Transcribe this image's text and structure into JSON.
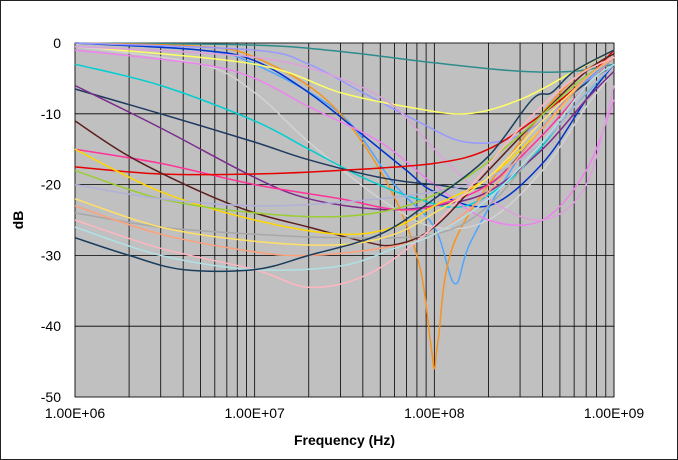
{
  "chart_data": {
    "type": "line",
    "title": "",
    "xlabel": "Frequency (Hz)",
    "ylabel": "dB",
    "x_scale": "log",
    "xlim": [
      1000000,
      1000000000
    ],
    "ylim": [
      -50,
      0
    ],
    "x_ticks": [
      1000000,
      10000000,
      100000000,
      1000000000
    ],
    "x_tick_labels": [
      "1.00E+06",
      "1.00E+07",
      "1.00E+08",
      "1.00E+09"
    ],
    "y_ticks": [
      0,
      -10,
      -20,
      -30,
      -40,
      -50
    ],
    "y_tick_labels": [
      "0",
      "-10",
      "-20",
      "-30",
      "-40",
      "-50"
    ],
    "grid": "on",
    "legend": "none",
    "plot_background": "#c0c0c0",
    "series": [
      {
        "color": "#2e8b8b",
        "points": [
          [
            1000000,
            0
          ],
          [
            10000000,
            -0.3
          ],
          [
            30000000,
            -1.2
          ],
          [
            100000000,
            -2.8
          ],
          [
            300000000,
            -4
          ],
          [
            600000000,
            -4
          ],
          [
            1000000000,
            -3
          ]
        ]
      },
      {
        "color": "#4da6ff",
        "points": [
          [
            1000000,
            0
          ],
          [
            5000000,
            -1
          ],
          [
            10000000,
            -3
          ],
          [
            30000000,
            -10
          ],
          [
            60000000,
            -20
          ],
          [
            100000000,
            -26
          ],
          [
            130000000,
            -34
          ],
          [
            160000000,
            -28
          ],
          [
            300000000,
            -16
          ],
          [
            600000000,
            -7
          ],
          [
            1000000000,
            -2
          ]
        ]
      },
      {
        "color": "#f7941d",
        "points": [
          [
            1000000,
            0
          ],
          [
            5000000,
            -0.5
          ],
          [
            10000000,
            -2
          ],
          [
            25000000,
            -8
          ],
          [
            50000000,
            -18
          ],
          [
            80000000,
            -30
          ],
          [
            95000000,
            -42
          ],
          [
            100000000,
            -46
          ],
          [
            105000000,
            -42
          ],
          [
            130000000,
            -28
          ],
          [
            300000000,
            -14
          ],
          [
            600000000,
            -5
          ],
          [
            1000000000,
            -2
          ]
        ]
      },
      {
        "color": "#0033cc",
        "points": [
          [
            1000000,
            0
          ],
          [
            5000000,
            -1
          ],
          [
            10000000,
            -2.5
          ],
          [
            20000000,
            -7
          ],
          [
            40000000,
            -13
          ],
          [
            70000000,
            -18
          ],
          [
            100000000,
            -21
          ],
          [
            200000000,
            -23
          ],
          [
            400000000,
            -17
          ],
          [
            700000000,
            -8
          ],
          [
            1000000000,
            -3
          ]
        ]
      },
      {
        "color": "#9999ff",
        "points": [
          [
            1000000,
            0
          ],
          [
            10000000,
            -1
          ],
          [
            20000000,
            -3
          ],
          [
            40000000,
            -7
          ],
          [
            80000000,
            -11
          ],
          [
            150000000,
            -14
          ],
          [
            300000000,
            -13
          ],
          [
            600000000,
            -7
          ],
          [
            1000000000,
            -2
          ]
        ]
      },
      {
        "color": "#ffff66",
        "points": [
          [
            1000000,
            -0.5
          ],
          [
            10000000,
            -3
          ],
          [
            30000000,
            -7
          ],
          [
            70000000,
            -9
          ],
          [
            150000000,
            -10
          ],
          [
            300000000,
            -8
          ],
          [
            600000000,
            -4
          ],
          [
            1000000000,
            -1
          ]
        ]
      },
      {
        "color": "#d3d3d3",
        "points": [
          [
            1000000,
            -0.5
          ],
          [
            5000000,
            -3
          ],
          [
            10000000,
            -7
          ],
          [
            20000000,
            -14
          ],
          [
            50000000,
            -22
          ],
          [
            100000000,
            -26
          ],
          [
            200000000,
            -25
          ],
          [
            400000000,
            -18
          ],
          [
            700000000,
            -9
          ],
          [
            1000000000,
            -4
          ]
        ]
      },
      {
        "color": "#00ced1",
        "points": [
          [
            1000000,
            -3
          ],
          [
            3000000,
            -6
          ],
          [
            10000000,
            -11
          ],
          [
            20000000,
            -15
          ],
          [
            40000000,
            -19
          ],
          [
            80000000,
            -22
          ],
          [
            150000000,
            -23
          ],
          [
            300000000,
            -18
          ],
          [
            600000000,
            -9
          ],
          [
            1000000000,
            -3
          ]
        ]
      },
      {
        "color": "#ee82ee",
        "points": [
          [
            1000000,
            -1
          ],
          [
            5000000,
            -3
          ],
          [
            10000000,
            -5
          ],
          [
            20000000,
            -9
          ],
          [
            50000000,
            -14
          ],
          [
            100000000,
            -20
          ],
          [
            200000000,
            -25
          ],
          [
            400000000,
            -25
          ],
          [
            700000000,
            -18
          ],
          [
            1000000000,
            -8
          ]
        ]
      },
      {
        "color": "#dda0dd",
        "points": [
          [
            1000000,
            -0.5
          ],
          [
            10000000,
            -2
          ],
          [
            30000000,
            -5
          ],
          [
            60000000,
            -9
          ],
          [
            100000000,
            -15
          ],
          [
            200000000,
            -22
          ],
          [
            400000000,
            -25
          ],
          [
            700000000,
            -20
          ],
          [
            1000000000,
            -6
          ]
        ]
      },
      {
        "color": "#1f3a5f",
        "points": [
          [
            1000000,
            -6.5
          ],
          [
            3000000,
            -10
          ],
          [
            10000000,
            -14
          ],
          [
            20000000,
            -16.5
          ],
          [
            50000000,
            -19
          ],
          [
            100000000,
            -20
          ],
          [
            200000000,
            -20
          ],
          [
            400000000,
            -12
          ],
          [
            600000000,
            -7
          ],
          [
            1000000000,
            -3
          ]
        ]
      },
      {
        "color": "#7b2d8b",
        "points": [
          [
            1000000,
            -6
          ],
          [
            3000000,
            -12
          ],
          [
            10000000,
            -19
          ],
          [
            20000000,
            -22
          ],
          [
            50000000,
            -23.5
          ],
          [
            100000000,
            -23
          ],
          [
            200000000,
            -21
          ],
          [
            400000000,
            -15
          ],
          [
            700000000,
            -8
          ],
          [
            1000000000,
            -4
          ]
        ]
      },
      {
        "color": "#ff3399",
        "points": [
          [
            1000000,
            -15
          ],
          [
            3000000,
            -17
          ],
          [
            10000000,
            -20
          ],
          [
            30000000,
            -22
          ],
          [
            60000000,
            -23.5
          ],
          [
            100000000,
            -23
          ],
          [
            200000000,
            -20
          ],
          [
            400000000,
            -13
          ],
          [
            700000000,
            -6
          ],
          [
            1000000000,
            -2
          ]
        ]
      },
      {
        "color": "#e60000",
        "points": [
          [
            1000000,
            -17.5
          ],
          [
            3000000,
            -18.5
          ],
          [
            10000000,
            -18.5
          ],
          [
            30000000,
            -18
          ],
          [
            100000000,
            -17
          ],
          [
            200000000,
            -15
          ],
          [
            400000000,
            -10
          ],
          [
            700000000,
            -5
          ],
          [
            1000000000,
            -1
          ]
        ]
      },
      {
        "color": "#5c1f1f",
        "points": [
          [
            1000000,
            -11
          ],
          [
            2000000,
            -16
          ],
          [
            5000000,
            -21
          ],
          [
            10000000,
            -24
          ],
          [
            20000000,
            -26
          ],
          [
            40000000,
            -28
          ],
          [
            60000000,
            -28.5
          ],
          [
            100000000,
            -26
          ],
          [
            200000000,
            -18
          ],
          [
            400000000,
            -10
          ],
          [
            700000000,
            -4
          ],
          [
            1000000000,
            -1.5
          ]
        ]
      },
      {
        "color": "#ffd700",
        "points": [
          [
            1000000,
            -15
          ],
          [
            3000000,
            -21
          ],
          [
            10000000,
            -25
          ],
          [
            30000000,
            -27
          ],
          [
            60000000,
            -26
          ],
          [
            100000000,
            -23
          ],
          [
            200000000,
            -19
          ],
          [
            400000000,
            -12
          ],
          [
            700000000,
            -5
          ],
          [
            1000000000,
            -2
          ]
        ]
      },
      {
        "color": "#9acd32",
        "points": [
          [
            1000000,
            -18
          ],
          [
            3000000,
            -22
          ],
          [
            10000000,
            -24
          ],
          [
            30000000,
            -24.5
          ],
          [
            70000000,
            -23
          ],
          [
            150000000,
            -19
          ],
          [
            300000000,
            -13
          ],
          [
            600000000,
            -6
          ],
          [
            1000000000,
            -2
          ]
        ]
      },
      {
        "color": "#b0b0d8",
        "points": [
          [
            1000000,
            -20
          ],
          [
            3000000,
            -22
          ],
          [
            10000000,
            -23
          ],
          [
            30000000,
            -22.5
          ],
          [
            100000000,
            -21
          ],
          [
            200000000,
            -19
          ],
          [
            400000000,
            -14
          ],
          [
            700000000,
            -7
          ],
          [
            1000000000,
            -3
          ]
        ]
      },
      {
        "color": "#a8a8a8",
        "points": [
          [
            1000000,
            -24
          ],
          [
            3000000,
            -26
          ],
          [
            10000000,
            -27
          ],
          [
            30000000,
            -27.5
          ],
          [
            100000000,
            -27
          ],
          [
            200000000,
            -23
          ],
          [
            400000000,
            -14
          ],
          [
            700000000,
            -6
          ],
          [
            1000000000,
            -2
          ]
        ]
      },
      {
        "color": "#ffe066",
        "points": [
          [
            1000000,
            -22
          ],
          [
            3000000,
            -26
          ],
          [
            10000000,
            -28
          ],
          [
            30000000,
            -28.5
          ],
          [
            60000000,
            -27
          ],
          [
            100000000,
            -24
          ],
          [
            200000000,
            -19
          ],
          [
            400000000,
            -11
          ],
          [
            700000000,
            -5
          ],
          [
            1000000000,
            -2
          ]
        ]
      },
      {
        "color": "#ffa07a",
        "points": [
          [
            1000000,
            -23
          ],
          [
            3000000,
            -27
          ],
          [
            10000000,
            -29.5
          ],
          [
            20000000,
            -30
          ],
          [
            50000000,
            -29
          ],
          [
            100000000,
            -27
          ],
          [
            200000000,
            -21
          ],
          [
            400000000,
            -12
          ],
          [
            700000000,
            -5
          ],
          [
            1000000000,
            -2
          ]
        ]
      },
      {
        "color": "#ffb6c1",
        "points": [
          [
            1000000,
            -25
          ],
          [
            3000000,
            -29
          ],
          [
            10000000,
            -32
          ],
          [
            20000000,
            -34.5
          ],
          [
            40000000,
            -33
          ],
          [
            80000000,
            -28
          ],
          [
            150000000,
            -21
          ],
          [
            300000000,
            -12
          ],
          [
            600000000,
            -5
          ],
          [
            1000000000,
            -2
          ]
        ]
      },
      {
        "color": "#b0e0e6",
        "points": [
          [
            1000000,
            -26
          ],
          [
            3000000,
            -30
          ],
          [
            10000000,
            -32
          ],
          [
            30000000,
            -31.5
          ],
          [
            60000000,
            -29
          ],
          [
            100000000,
            -27
          ],
          [
            200000000,
            -22
          ],
          [
            400000000,
            -14
          ],
          [
            700000000,
            -6
          ],
          [
            1000000000,
            -3
          ]
        ]
      },
      {
        "color": "#1a3d5c",
        "points": [
          [
            1000000,
            -27.5
          ],
          [
            2000000,
            -30
          ],
          [
            4000000,
            -32
          ],
          [
            10000000,
            -32
          ],
          [
            20000000,
            -30
          ],
          [
            50000000,
            -27
          ],
          [
            100000000,
            -22
          ],
          [
            200000000,
            -16
          ],
          [
            350000000,
            -8
          ],
          [
            450000000,
            -7
          ],
          [
            600000000,
            -4
          ],
          [
            1000000000,
            -1
          ]
        ]
      }
    ]
  }
}
